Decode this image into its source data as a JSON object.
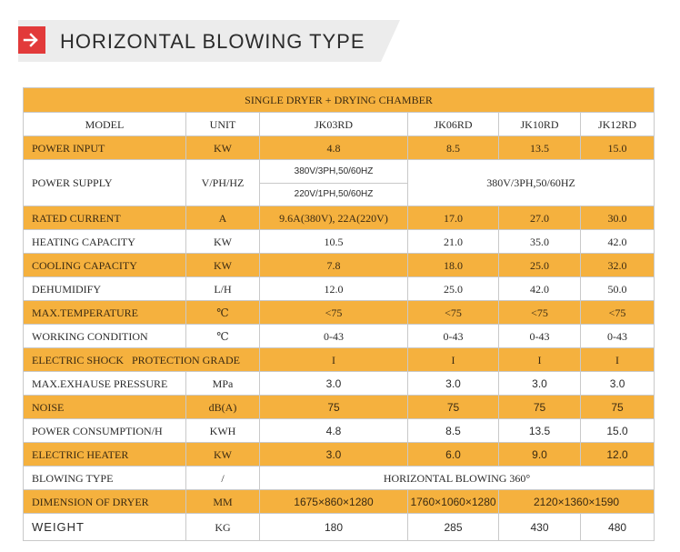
{
  "header": {
    "title": "HORIZONTAL BLOWING TYPE",
    "icon": "arrow-right-icon",
    "icon_color": "#e23a3a"
  },
  "colors": {
    "accent": "#f5b13e",
    "row_alt": "#ffffff",
    "border": "#c9c9c9"
  },
  "table": {
    "title": "SINGLE DRYER + DRYING CHAMBER",
    "header_row": [
      "MODEL",
      "UNIT",
      "JK03RD",
      "JK06RD",
      "JK10RD",
      "JK12RD"
    ],
    "power_input": [
      "POWER INPUT",
      "KW",
      "4.8",
      "8.5",
      "13.5",
      "15.0"
    ],
    "power_supply": {
      "param": "POWER SUPPLY",
      "unit": "V/PH/HZ",
      "jk03_line1": "380V/3PH,50/60HZ",
      "jk03_line2": "220V/1PH,50/60HZ",
      "others": "380V/3PH,50/60HZ"
    },
    "rated_current": [
      "RATED CURRENT",
      "A",
      "9.6A(380V), 22A(220V)",
      "17.0",
      "27.0",
      "30.0"
    ],
    "heating_capacity": [
      "HEATING CAPACITY",
      "KW",
      "10.5",
      "21.0",
      "35.0",
      "42.0"
    ],
    "cooling_capacity": [
      "COOLING CAPACITY",
      "KW",
      "7.8",
      "18.0",
      "25.0",
      "32.0"
    ],
    "dehumidify": [
      "DEHUMIDIFY",
      "L/H",
      "12.0",
      "25.0",
      "42.0",
      "50.0"
    ],
    "max_temperature": [
      "MAX.TEMPERATURE",
      "℃",
      "<75",
      "<75",
      "<75",
      "<75"
    ],
    "working_condition": [
      "WORKING CONDITION",
      "℃",
      "0-43",
      "0-43",
      "0-43",
      "0-43"
    ],
    "electric_shock": [
      "ELECTRIC SHOCK   PROTECTION GRADE",
      "I",
      "I",
      "I",
      "I"
    ],
    "max_exhaust": [
      "MAX.EXHAUSE PRESSURE",
      "MPa",
      "3.0",
      "3.0",
      "3.0",
      "3.0"
    ],
    "noise": [
      "NOISE",
      "dB(A)",
      "75",
      "75",
      "75",
      "75"
    ],
    "power_consumption": [
      "POWER CONSUMPTION/H",
      "KWH",
      "4.8",
      "8.5",
      "13.5",
      "15.0"
    ],
    "electric_heater": [
      "ELECTRIC HEATER",
      "KW",
      "3.0",
      "6.0",
      "9.0",
      "12.0"
    ],
    "blowing_type": [
      "BLOWING TYPE",
      "/",
      "HORIZONTAL BLOWING 360°"
    ],
    "dimension": [
      "DIMENSION OF DRYER",
      "MM",
      "1675×860×1280",
      "1760×1060×1280",
      "2120×1360×1590"
    ],
    "weight": [
      "WEIGHT",
      "KG",
      "180",
      "285",
      "430",
      "480"
    ]
  }
}
